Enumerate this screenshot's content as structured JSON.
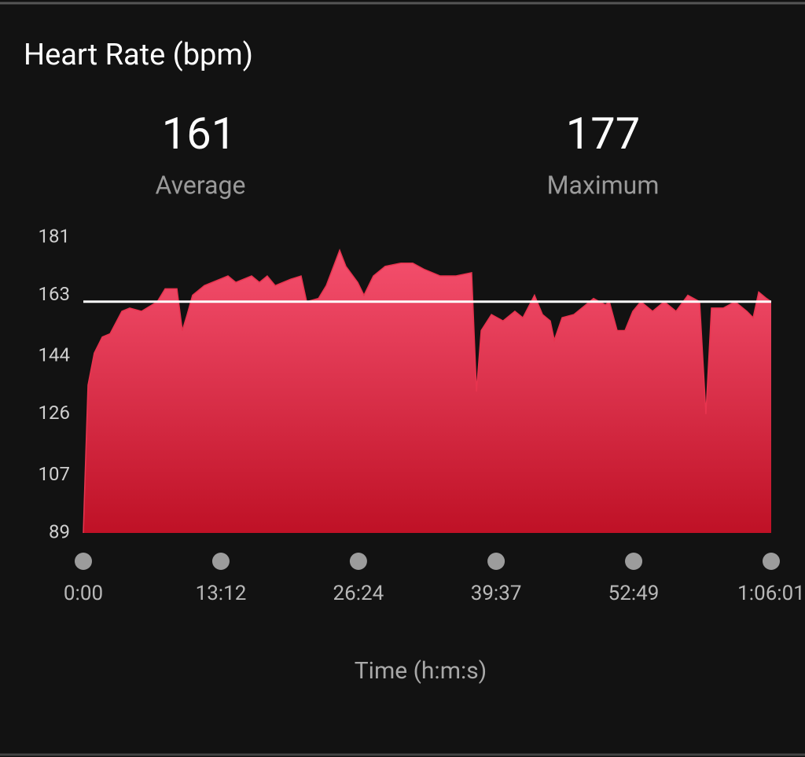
{
  "chart_data": {
    "type": "area",
    "title": "Heart Rate (bpm)",
    "stats": [
      {
        "value": 161,
        "label": "Average"
      },
      {
        "value": 177,
        "label": "Maximum"
      }
    ],
    "x_label": "Time (h:m:s)",
    "color": "#e8344f",
    "x": [
      0,
      5,
      27,
      63,
      109,
      154,
      222,
      267,
      335,
      426,
      471,
      539,
      570,
      598,
      629,
      697,
      788,
      833,
      878,
      969,
      1014,
      1059,
      1105,
      1195,
      1254,
      1286,
      1354,
      1399,
      1476,
      1512,
      1580,
      1616,
      1670,
      1738,
      1829,
      1897,
      1965,
      2055,
      2146,
      2236,
      2264,
      2291,
      2350,
      2417,
      2485,
      2531,
      2598,
      2644,
      2689,
      2712,
      2757,
      2825,
      2893,
      2938,
      3006,
      3029,
      3074,
      3119,
      3164,
      3210,
      3278,
      3345,
      3413,
      3481,
      3549,
      3585,
      3617,
      3685,
      3753,
      3821,
      3857,
      3889,
      3934,
      3961
    ],
    "values": [
      89,
      98,
      135,
      145,
      150,
      151,
      158,
      159,
      158,
      161,
      165,
      165,
      152,
      157,
      163,
      166,
      168,
      169,
      167,
      169,
      167,
      169,
      166,
      168,
      169,
      161,
      162,
      166,
      177,
      172,
      167,
      163,
      169,
      172,
      173,
      173,
      171,
      169,
      169,
      170,
      133,
      152,
      157,
      155,
      158,
      156,
      163,
      157,
      155,
      149,
      156,
      157,
      160,
      162,
      160,
      161,
      152,
      152,
      158,
      161,
      158,
      161,
      158,
      163,
      161,
      126,
      159,
      159,
      161,
      158,
      156,
      164,
      162,
      161
    ],
    "xlim": [
      0,
      3961
    ],
    "xticks": [
      {
        "value": 0,
        "label": "0:00"
      },
      {
        "value": 792,
        "label": "13:12"
      },
      {
        "value": 1584,
        "label": "26:24"
      },
      {
        "value": 2377,
        "label": "39:37"
      },
      {
        "value": 3169,
        "label": "52:49"
      },
      {
        "value": 3961,
        "label": "1:06:01"
      }
    ],
    "ylim": [
      89,
      181
    ],
    "yticks": [
      89,
      107,
      126,
      144,
      163,
      181
    ]
  }
}
